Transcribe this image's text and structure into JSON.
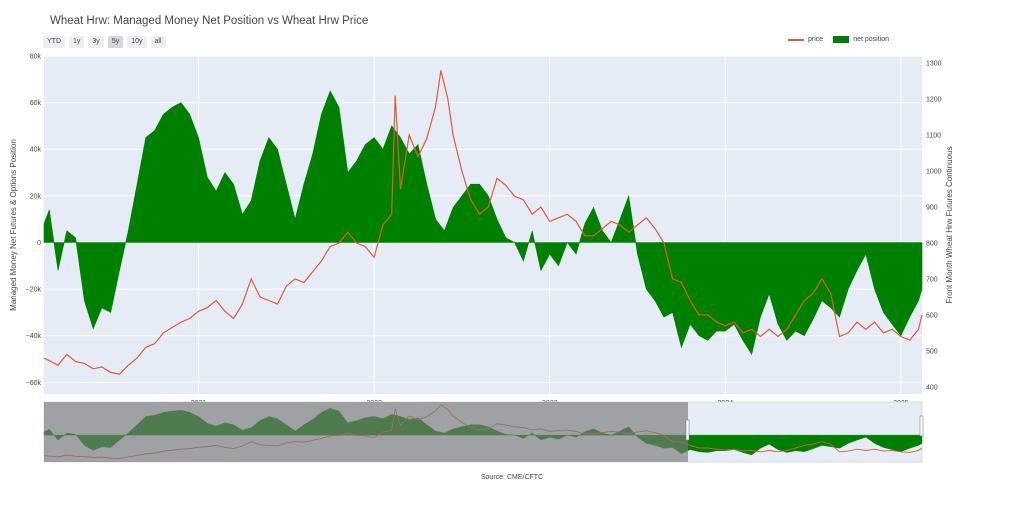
{
  "title": "Wheat Hrw: Managed Money Net Position vs Wheat Hrw Price",
  "range_buttons": [
    "YTD",
    "1y",
    "3y",
    "5y",
    "10y",
    "all"
  ],
  "active_range": "5y",
  "legend": {
    "price": "price",
    "net": "net position"
  },
  "source": "Source: CME/CFTC",
  "colors": {
    "price": "#e0593a",
    "net": "#008000",
    "plot_bg": "#e5ecf6",
    "grid": "#ffffff",
    "selector_shade": "#7a7a7a"
  },
  "chart_data": {
    "type": "area",
    "x_tick_labels": [
      "2021",
      "2022",
      "2023",
      "2024",
      "2025"
    ],
    "x_tick_values": [
      2021.0,
      2022.0,
      2023.0,
      2024.0,
      2025.0
    ],
    "xlim": [
      2020.12,
      2025.12
    ],
    "ylabel_left": "Managed Money Net Futures & Options Position",
    "ylabel_right": "Front Month Wheat Hrw Futures Continuous",
    "y_left_ticks": [
      80000,
      60000,
      40000,
      20000,
      0,
      -20000,
      -40000,
      -60000
    ],
    "y_left_tick_labels": [
      "80k",
      "60k",
      "40k",
      "20k",
      "0",
      "−20k",
      "−40k",
      "−60k"
    ],
    "y_left_lim": [
      -65000,
      80000
    ],
    "y_right_ticks": [
      400,
      500,
      600,
      700,
      800,
      900,
      1000,
      1100,
      1200,
      1300
    ],
    "y_right_tick_labels": [
      "400",
      "500",
      "600",
      "700",
      "800",
      "900",
      "1000",
      "1100",
      "1200",
      "1300"
    ],
    "y_right_lim": [
      380,
      1320
    ],
    "series": [
      {
        "name": "net position",
        "x": [
          2020.12,
          2020.15,
          2020.2,
          2020.25,
          2020.3,
          2020.35,
          2020.4,
          2020.45,
          2020.5,
          2020.55,
          2020.6,
          2020.65,
          2020.7,
          2020.75,
          2020.8,
          2020.85,
          2020.9,
          2020.95,
          2021.0,
          2021.05,
          2021.1,
          2021.15,
          2021.2,
          2021.25,
          2021.3,
          2021.35,
          2021.4,
          2021.45,
          2021.5,
          2021.55,
          2021.6,
          2021.65,
          2021.7,
          2021.75,
          2021.8,
          2021.85,
          2021.9,
          2021.95,
          2022.0,
          2022.05,
          2022.1,
          2022.15,
          2022.2,
          2022.25,
          2022.3,
          2022.35,
          2022.4,
          2022.45,
          2022.5,
          2022.55,
          2022.6,
          2022.65,
          2022.7,
          2022.75,
          2022.8,
          2022.85,
          2022.9,
          2022.95,
          2023.0,
          2023.05,
          2023.1,
          2023.15,
          2023.2,
          2023.25,
          2023.3,
          2023.35,
          2023.4,
          2023.45,
          2023.5,
          2023.55,
          2023.6,
          2023.65,
          2023.7,
          2023.75,
          2023.8,
          2023.85,
          2023.9,
          2023.95,
          2024.0,
          2024.05,
          2024.1,
          2024.15,
          2024.2,
          2024.25,
          2024.3,
          2024.35,
          2024.4,
          2024.45,
          2024.5,
          2024.55,
          2024.6,
          2024.65,
          2024.7,
          2024.75,
          2024.8,
          2024.85,
          2024.9,
          2024.95,
          2025.0,
          2025.05,
          2025.1,
          2025.12
        ],
        "y": [
          8000,
          14000,
          -12000,
          5000,
          2000,
          -25000,
          -37000,
          -28000,
          -30000,
          -12000,
          5000,
          25000,
          45000,
          48000,
          55000,
          58000,
          60000,
          55000,
          45000,
          28000,
          22000,
          30000,
          25000,
          12000,
          18000,
          35000,
          45000,
          40000,
          25000,
          10000,
          25000,
          38000,
          55000,
          65000,
          58000,
          30000,
          35000,
          42000,
          45000,
          40000,
          50000,
          45000,
          38000,
          42000,
          25000,
          10000,
          5000,
          15000,
          20000,
          25000,
          25000,
          20000,
          10000,
          2000,
          0,
          -8000,
          5000,
          -12000,
          -5000,
          -10000,
          0,
          -5000,
          8000,
          15000,
          5000,
          0,
          10000,
          20000,
          -5000,
          -20000,
          -25000,
          -32000,
          -30000,
          -45000,
          -35000,
          -40000,
          -42000,
          -38000,
          -38000,
          -35000,
          -42000,
          -48000,
          -32000,
          -22000,
          -35000,
          -42000,
          -38000,
          -40000,
          -33000,
          -25000,
          -28000,
          -32000,
          -20000,
          -12000,
          -5000,
          -20000,
          -30000,
          -35000,
          -40000,
          -32000,
          -25000,
          -20000
        ]
      },
      {
        "name": "price",
        "x": [
          2020.12,
          2020.2,
          2020.25,
          2020.3,
          2020.35,
          2020.4,
          2020.45,
          2020.5,
          2020.55,
          2020.6,
          2020.65,
          2020.7,
          2020.75,
          2020.8,
          2020.85,
          2020.9,
          2020.95,
          2021.0,
          2021.05,
          2021.1,
          2021.15,
          2021.2,
          2021.25,
          2021.3,
          2021.35,
          2021.4,
          2021.45,
          2021.5,
          2021.55,
          2021.6,
          2021.65,
          2021.7,
          2021.75,
          2021.8,
          2021.85,
          2021.9,
          2021.95,
          2022.0,
          2022.05,
          2022.1,
          2022.12,
          2022.15,
          2022.2,
          2022.25,
          2022.3,
          2022.35,
          2022.38,
          2022.42,
          2022.45,
          2022.5,
          2022.55,
          2022.6,
          2022.65,
          2022.7,
          2022.75,
          2022.8,
          2022.85,
          2022.9,
          2022.95,
          2023.0,
          2023.05,
          2023.1,
          2023.15,
          2023.2,
          2023.25,
          2023.3,
          2023.35,
          2023.4,
          2023.45,
          2023.5,
          2023.55,
          2023.6,
          2023.65,
          2023.7,
          2023.75,
          2023.8,
          2023.85,
          2023.9,
          2023.95,
          2024.0,
          2024.05,
          2024.1,
          2024.15,
          2024.2,
          2024.25,
          2024.3,
          2024.35,
          2024.4,
          2024.45,
          2024.5,
          2024.55,
          2024.6,
          2024.65,
          2024.7,
          2024.75,
          2024.8,
          2024.85,
          2024.9,
          2024.95,
          2025.0,
          2025.05,
          2025.1,
          2025.12
        ],
        "y": [
          480,
          460,
          490,
          470,
          465,
          450,
          455,
          440,
          435,
          460,
          480,
          510,
          520,
          550,
          565,
          580,
          590,
          610,
          620,
          640,
          610,
          590,
          630,
          700,
          650,
          640,
          630,
          680,
          700,
          690,
          720,
          750,
          790,
          800,
          830,
          800,
          790,
          760,
          850,
          880,
          1210,
          950,
          1100,
          1040,
          1090,
          1180,
          1280,
          1200,
          1100,
          1000,
          920,
          880,
          900,
          980,
          960,
          930,
          920,
          880,
          900,
          860,
          870,
          880,
          860,
          820,
          820,
          840,
          860,
          850,
          830,
          850,
          870,
          840,
          800,
          700,
          690,
          640,
          600,
          600,
          580,
          570,
          580,
          550,
          560,
          540,
          560,
          540,
          560,
          600,
          640,
          660,
          700,
          660,
          540,
          550,
          580,
          560,
          580,
          550,
          560,
          540,
          530,
          560,
          600
        ]
      }
    ]
  }
}
